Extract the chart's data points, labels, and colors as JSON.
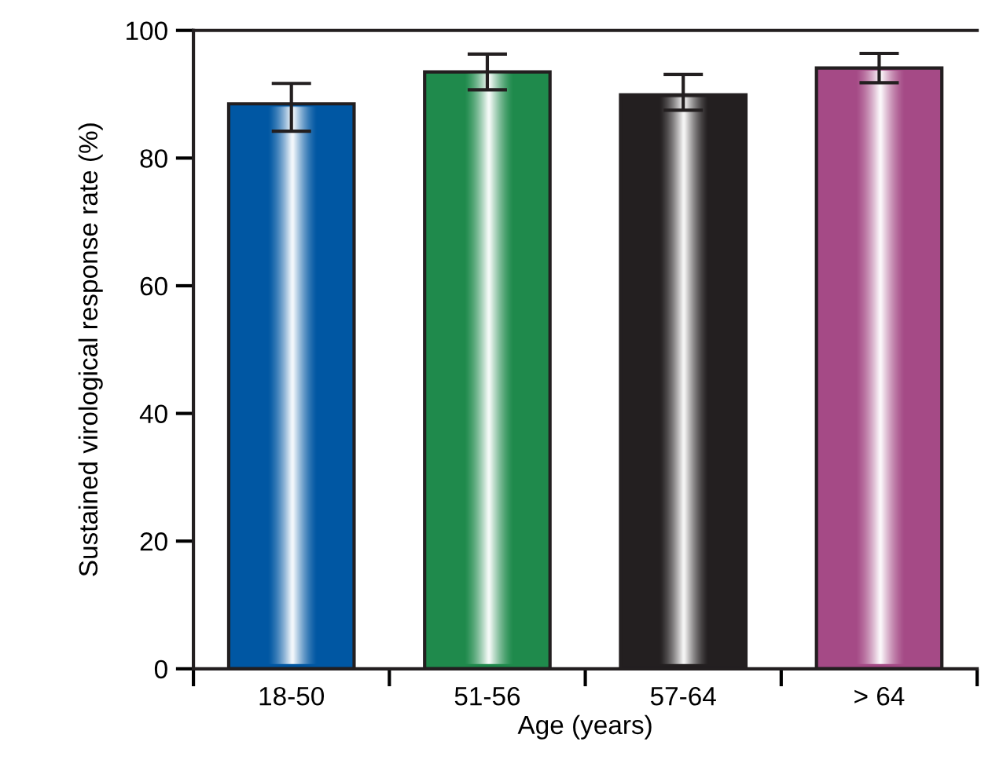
{
  "chart_data": {
    "type": "bar",
    "xlabel": "Age (years)",
    "ylabel": "Sustained virological response rate (%)",
    "categories": [
      "18-50",
      "51-56",
      "57-64",
      "> 64"
    ],
    "values": [
      88.5,
      93.5,
      89.9,
      94.1
    ],
    "errors": [
      [
        84.2,
        91.7
      ],
      2.8,
      [
        87.5,
        93.1
      ],
      2.3
    ],
    "colors": [
      "#0057a3",
      "#1f8a4c",
      "#231f20",
      "#a54a86"
    ],
    "ylim": [
      0,
      100
    ],
    "yticks": [
      0,
      20,
      40,
      60,
      80,
      100
    ],
    "grid": false,
    "legend": false
  }
}
